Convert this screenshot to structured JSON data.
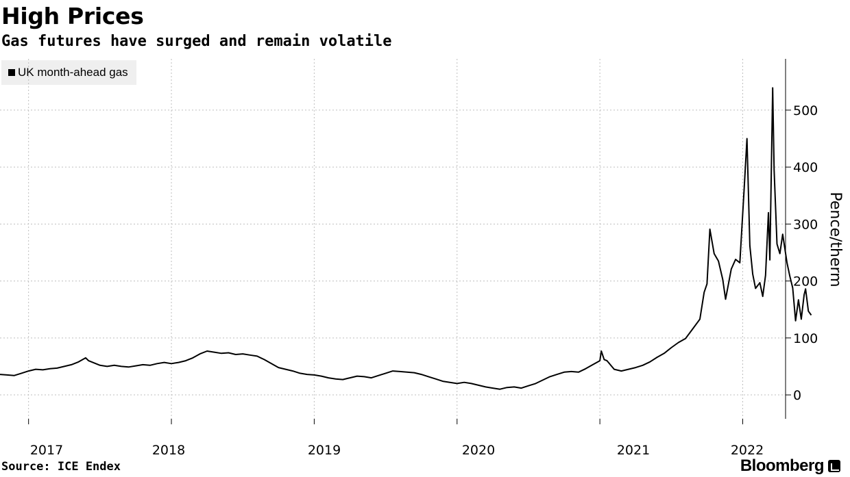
{
  "header": {
    "title": "High Prices",
    "subtitle": "Gas futures have surged and remain volatile"
  },
  "footer": {
    "source": "Source: ICE Endex",
    "brand": "Bloomberg"
  },
  "chart_data": {
    "type": "line",
    "title": "High Prices",
    "subtitle": "Gas futures have surged and remain volatile",
    "ylabel": "Pence/therm",
    "xlabel": "",
    "ylim": [
      -42,
      590
    ],
    "yticks": [
      0,
      100,
      200,
      300,
      400,
      500
    ],
    "xlim": [
      2016.8,
      2022.3
    ],
    "xticks": [
      {
        "label": "2017",
        "value": 2017
      },
      {
        "label": "2018",
        "value": 2018
      },
      {
        "label": "2019",
        "value": 2019
      },
      {
        "label": "2020",
        "value": 2020
      },
      {
        "label": "2021",
        "value": 2021
      },
      {
        "label": "2022",
        "value": 2022
      }
    ],
    "grid": {
      "vertical": true,
      "horizontal": true
    },
    "legend_position": "top-left",
    "series": [
      {
        "name": "UK month-ahead gas",
        "color": "#000000",
        "points": [
          [
            2016.8,
            36
          ],
          [
            2016.85,
            35
          ],
          [
            2016.9,
            34
          ],
          [
            2016.95,
            38
          ],
          [
            2017.0,
            42
          ],
          [
            2017.05,
            45
          ],
          [
            2017.1,
            44
          ],
          [
            2017.15,
            46
          ],
          [
            2017.2,
            47
          ],
          [
            2017.25,
            50
          ],
          [
            2017.3,
            53
          ],
          [
            2017.35,
            58
          ],
          [
            2017.4,
            65
          ],
          [
            2017.42,
            60
          ],
          [
            2017.45,
            57
          ],
          [
            2017.5,
            52
          ],
          [
            2017.55,
            50
          ],
          [
            2017.6,
            52
          ],
          [
            2017.65,
            50
          ],
          [
            2017.7,
            49
          ],
          [
            2017.75,
            51
          ],
          [
            2017.8,
            53
          ],
          [
            2017.85,
            52
          ],
          [
            2017.9,
            55
          ],
          [
            2017.95,
            57
          ],
          [
            2018.0,
            55
          ],
          [
            2018.05,
            57
          ],
          [
            2018.1,
            60
          ],
          [
            2018.15,
            65
          ],
          [
            2018.2,
            72
          ],
          [
            2018.25,
            77
          ],
          [
            2018.3,
            75
          ],
          [
            2018.35,
            73
          ],
          [
            2018.4,
            74
          ],
          [
            2018.45,
            71
          ],
          [
            2018.5,
            72
          ],
          [
            2018.55,
            70
          ],
          [
            2018.6,
            68
          ],
          [
            2018.65,
            62
          ],
          [
            2018.7,
            55
          ],
          [
            2018.75,
            48
          ],
          [
            2018.8,
            45
          ],
          [
            2018.85,
            42
          ],
          [
            2018.9,
            38
          ],
          [
            2018.95,
            36
          ],
          [
            2019.0,
            35
          ],
          [
            2019.05,
            33
          ],
          [
            2019.1,
            30
          ],
          [
            2019.15,
            28
          ],
          [
            2019.2,
            27
          ],
          [
            2019.25,
            30
          ],
          [
            2019.3,
            33
          ],
          [
            2019.35,
            32
          ],
          [
            2019.4,
            30
          ],
          [
            2019.45,
            34
          ],
          [
            2019.5,
            38
          ],
          [
            2019.55,
            42
          ],
          [
            2019.6,
            41
          ],
          [
            2019.65,
            40
          ],
          [
            2019.7,
            39
          ],
          [
            2019.75,
            36
          ],
          [
            2019.8,
            32
          ],
          [
            2019.85,
            28
          ],
          [
            2019.9,
            24
          ],
          [
            2019.95,
            22
          ],
          [
            2020.0,
            20
          ],
          [
            2020.05,
            22
          ],
          [
            2020.1,
            20
          ],
          [
            2020.15,
            17
          ],
          [
            2020.2,
            14
          ],
          [
            2020.25,
            12
          ],
          [
            2020.3,
            10
          ],
          [
            2020.35,
            13
          ],
          [
            2020.4,
            14
          ],
          [
            2020.45,
            12
          ],
          [
            2020.5,
            16
          ],
          [
            2020.55,
            20
          ],
          [
            2020.6,
            26
          ],
          [
            2020.65,
            32
          ],
          [
            2020.7,
            36
          ],
          [
            2020.75,
            40
          ],
          [
            2020.8,
            41
          ],
          [
            2020.85,
            40
          ],
          [
            2020.9,
            46
          ],
          [
            2020.95,
            53
          ],
          [
            2021.0,
            60
          ],
          [
            2021.01,
            77
          ],
          [
            2021.03,
            62
          ],
          [
            2021.05,
            60
          ],
          [
            2021.1,
            45
          ],
          [
            2021.15,
            42
          ],
          [
            2021.2,
            45
          ],
          [
            2021.25,
            48
          ],
          [
            2021.3,
            52
          ],
          [
            2021.35,
            58
          ],
          [
            2021.4,
            66
          ],
          [
            2021.45,
            73
          ],
          [
            2021.5,
            83
          ],
          [
            2021.55,
            92
          ],
          [
            2021.6,
            99
          ],
          [
            2021.65,
            116
          ],
          [
            2021.7,
            133
          ],
          [
            2021.73,
            180
          ],
          [
            2021.75,
            195
          ],
          [
            2021.77,
            291
          ],
          [
            2021.8,
            248
          ],
          [
            2021.83,
            235
          ],
          [
            2021.86,
            203
          ],
          [
            2021.88,
            168
          ],
          [
            2021.92,
            221
          ],
          [
            2021.95,
            238
          ],
          [
            2021.98,
            232
          ],
          [
            2022.01,
            362
          ],
          [
            2022.03,
            450
          ],
          [
            2022.05,
            262
          ],
          [
            2022.07,
            212
          ],
          [
            2022.09,
            187
          ],
          [
            2022.12,
            197
          ],
          [
            2022.14,
            173
          ],
          [
            2022.16,
            210
          ],
          [
            2022.18,
            320
          ],
          [
            2022.19,
            237
          ],
          [
            2022.21,
            539
          ],
          [
            2022.22,
            395
          ],
          [
            2022.24,
            265
          ],
          [
            2022.26,
            248
          ],
          [
            2022.28,
            282
          ],
          [
            2022.31,
            232
          ],
          [
            2022.33,
            208
          ],
          [
            2022.35,
            188
          ],
          [
            2022.37,
            130
          ],
          [
            2022.39,
            167
          ],
          [
            2022.41,
            133
          ],
          [
            2022.43,
            176
          ],
          [
            2022.44,
            186
          ],
          [
            2022.46,
            147
          ],
          [
            2022.48,
            140
          ]
        ]
      }
    ]
  }
}
